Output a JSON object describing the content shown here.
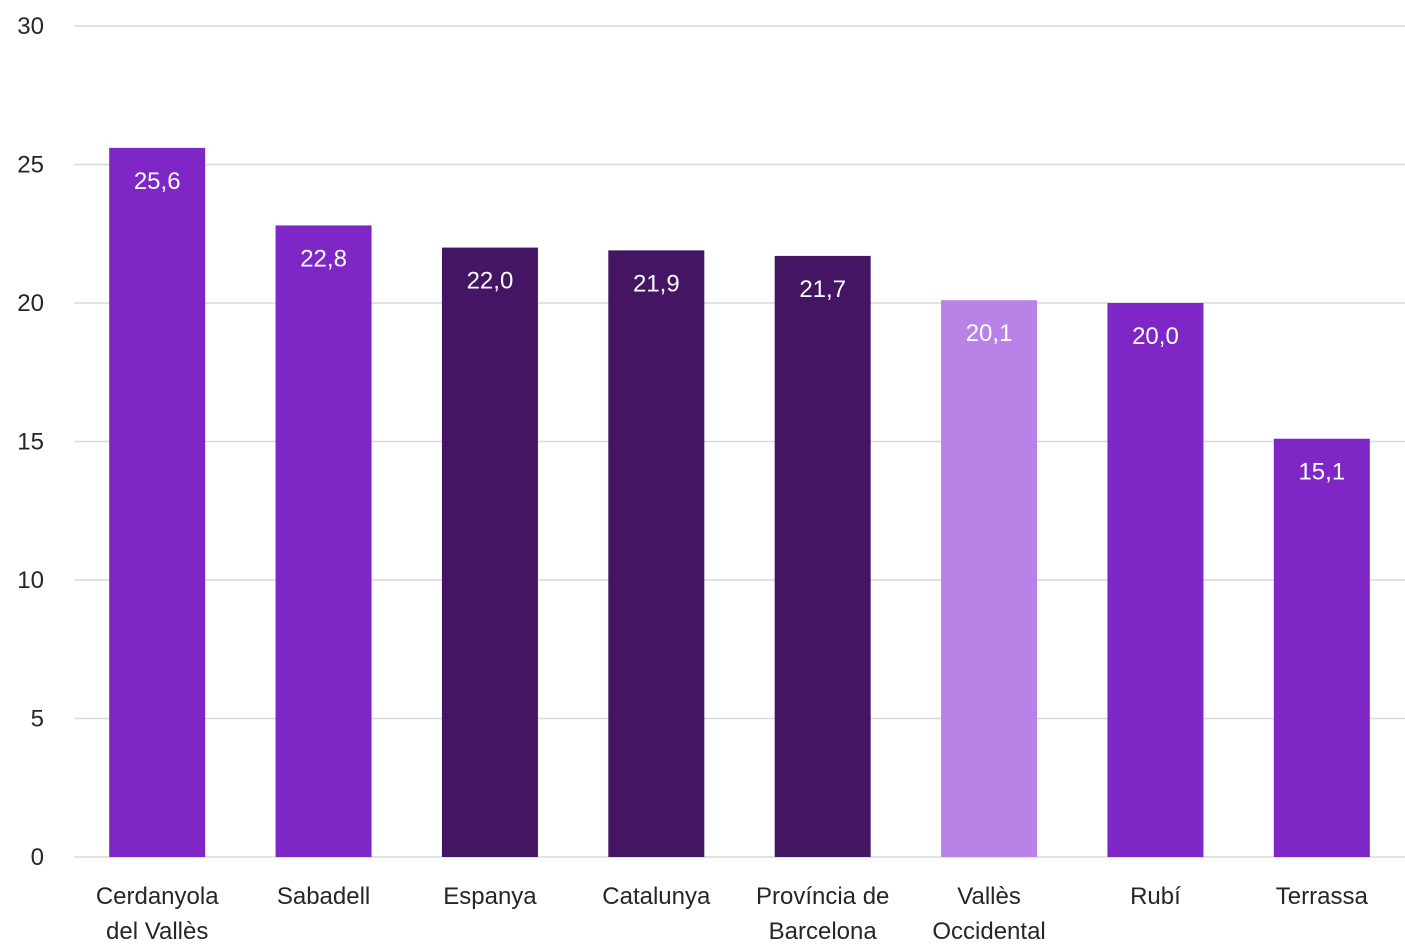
{
  "chart_data": {
    "type": "bar",
    "title": "",
    "xlabel": "",
    "ylabel": "",
    "ylim": [
      0,
      30
    ],
    "yticks": [
      "0",
      "5",
      "10",
      "15",
      "20",
      "25",
      "30"
    ],
    "grid": true,
    "legend": "none",
    "categories": [
      [
        "Cerdanyola",
        "del Vallès"
      ],
      [
        "Sabadell"
      ],
      [
        "Espanya"
      ],
      [
        "Catalunya"
      ],
      [
        "Província de",
        "Barcelona"
      ],
      [
        "Vallès",
        "Occidental"
      ],
      [
        "Rubí"
      ],
      [
        "Terrassa"
      ]
    ],
    "values": [
      25.6,
      22.8,
      22.0,
      21.9,
      21.7,
      20.1,
      20.0,
      15.1
    ],
    "data_labels": [
      "25,6",
      "22,8",
      "22,0",
      "21,9",
      "21,7",
      "20,1",
      "20,0",
      "15,1"
    ],
    "colors": [
      "#7e26c6",
      "#7e26c6",
      "#431563",
      "#431563",
      "#431563",
      "#b982e6",
      "#7e26c6",
      "#7e26c6"
    ]
  }
}
